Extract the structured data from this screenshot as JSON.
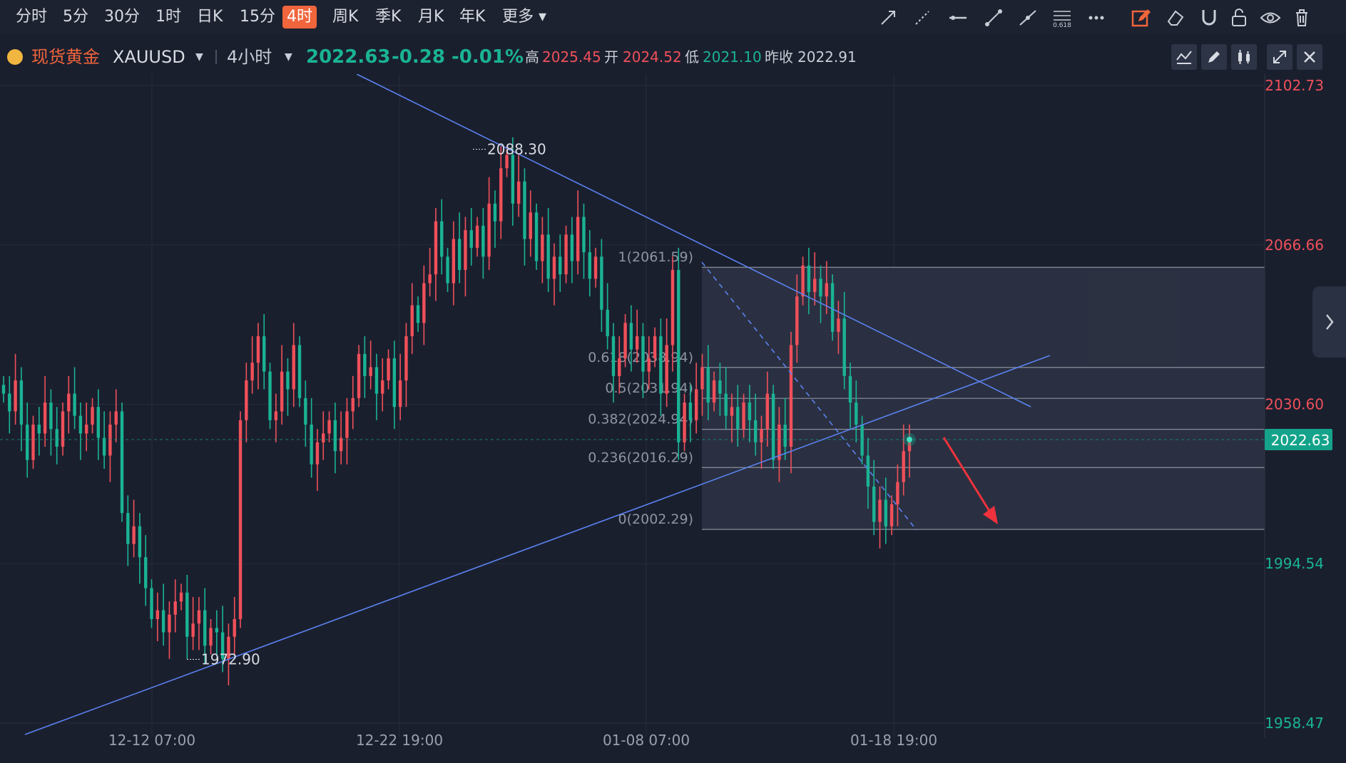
{
  "timeframes": [
    {
      "label": "分时",
      "active": false
    },
    {
      "label": "5分",
      "active": false
    },
    {
      "label": "30分",
      "active": false
    },
    {
      "label": "1时",
      "active": false
    },
    {
      "label": "日K",
      "active": false
    },
    {
      "label": "15分",
      "active": false
    },
    {
      "label": "4时",
      "active": true
    },
    {
      "label": "周K",
      "active": false
    },
    {
      "label": "季K",
      "active": false
    },
    {
      "label": "月K",
      "active": false
    },
    {
      "label": "年K",
      "active": false
    },
    {
      "label": "更多",
      "active": false
    }
  ],
  "tools": [
    "arrow-line-icon",
    "ray-icon",
    "horizontal-line-icon",
    "segment-icon",
    "trend-line-icon",
    "fibonacci-icon",
    "more-dots-icon",
    "draw-mode-icon",
    "eraser-icon",
    "magnet-icon",
    "lock-icon",
    "eye-icon",
    "trash-icon"
  ],
  "fib_tool_label": "0.618",
  "symbol": {
    "name": "现货黄金",
    "code": "XAUUSD",
    "interval": "4小时",
    "price": "2022.63",
    "change": "-0.28",
    "change_pct": "-0.01%",
    "high_label": "高",
    "high": "2025.45",
    "open_label": "开",
    "open": "2024.52",
    "low_label": "低",
    "low": "2021.10",
    "prev_close_label": "昨收",
    "prev_close": "2022.91"
  },
  "colors": {
    "up": "#f0505a",
    "down": "#1ab394",
    "line": "#5b82f0",
    "accent": "#f0653c",
    "price_tag": "#14a38a"
  },
  "chart_data": {
    "type": "candlestick",
    "symbol": "XAUUSD",
    "interval": "4小时",
    "y_axis_labels": [
      "2102.73",
      "2066.66",
      "2030.60",
      "1994.54",
      "1958.47"
    ],
    "ylim": [
      1958.47,
      2102.73
    ],
    "x_axis_labels": [
      "12-12 07:00",
      "12-22 19:00",
      "01-08 07:00",
      "01-18 19:00"
    ],
    "current_price": "2022.63",
    "annotations": [
      {
        "text": "2088.30",
        "value": 2088.3,
        "kind": "high"
      },
      {
        "text": "1972.90",
        "value": 1972.9,
        "kind": "low"
      }
    ],
    "fibonacci": {
      "levels": [
        {
          "label": "1(2061.59)",
          "ratio": 1,
          "price": 2061.59
        },
        {
          "label": "0.618(2038.94)",
          "ratio": 0.618,
          "price": 2038.94
        },
        {
          "label": "0.5(2031.94)",
          "ratio": 0.5,
          "price": 2031.94
        },
        {
          "label": "0.382(2024.94)",
          "ratio": 0.382,
          "price": 2024.94
        },
        {
          "label": "0.236(2016.29)",
          "ratio": 0.236,
          "price": 2016.29
        },
        {
          "label": "0(2002.29)",
          "ratio": 0,
          "price": 2002.29
        }
      ]
    },
    "closes": [
      2033,
      2029,
      2036,
      2026,
      2018,
      2026,
      2024,
      2031,
      2025,
      2021,
      2029,
      2033,
      2028,
      2024,
      2026,
      2030,
      2023,
      2019,
      2026,
      2029,
      2006,
      1999,
      2003,
      1996,
      1989,
      1982,
      1984,
      1979,
      1983,
      1986,
      1988,
      1978,
      1981,
      1984,
      1976,
      1980,
      1979,
      1973,
      1978,
      1982,
      2027,
      2036,
      2040,
      2046,
      2038,
      2027,
      2029,
      2038,
      2034,
      2044,
      2032,
      2026,
      2017,
      2022,
      2024,
      2027,
      2020,
      2023,
      2029,
      2032,
      2042,
      2037,
      2039,
      2033,
      2036,
      2041,
      2030,
      2036,
      2046,
      2053,
      2049,
      2058,
      2060,
      2072,
      2064,
      2058,
      2068,
      2061,
      2070,
      2066,
      2071,
      2064,
      2076,
      2072,
      2084,
      2087,
      2076,
      2081,
      2068,
      2074,
      2063,
      2069,
      2059,
      2064,
      2060,
      2069,
      2063,
      2073,
      2065,
      2059,
      2064,
      2052,
      2046,
      2037,
      2041,
      2049,
      2043,
      2046,
      2038,
      2041,
      2046,
      2033,
      2044,
      2061,
      2022,
      2031,
      2027,
      2034,
      2039,
      2031,
      2036,
      2033,
      2028,
      2030,
      2025,
      2031,
      2027,
      2022,
      2025,
      2033,
      2018,
      2026,
      2021,
      2044,
      2055,
      2062,
      2056,
      2059,
      2055,
      2058,
      2047,
      2050,
      2037,
      2031,
      2026,
      2019,
      2012,
      2004,
      2009,
      2003,
      2008,
      2013,
      2020,
      2023
    ]
  }
}
